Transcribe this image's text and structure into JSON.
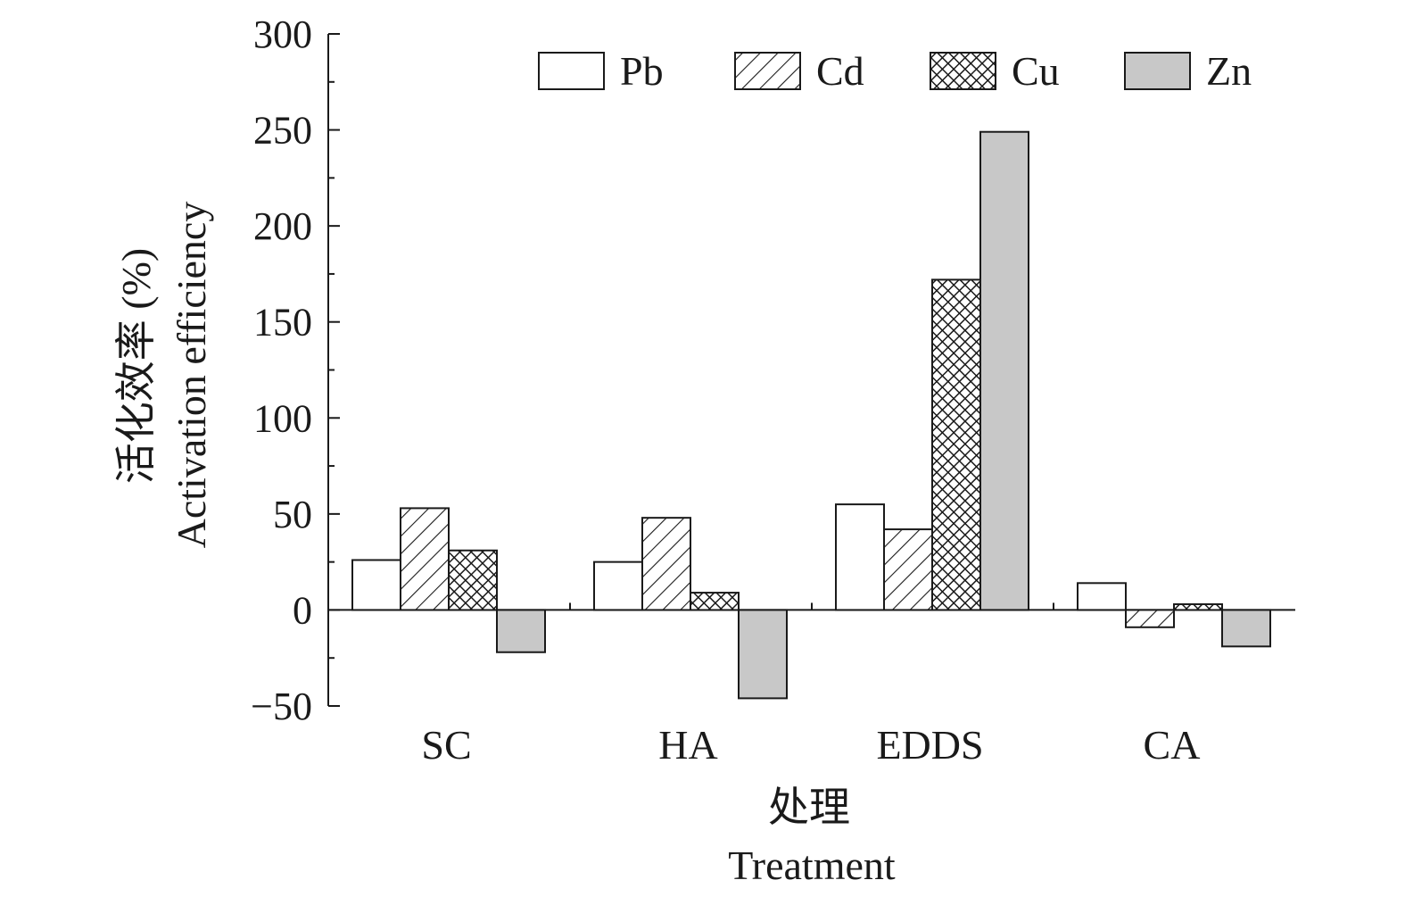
{
  "chart_data": {
    "type": "bar",
    "categories": [
      "SC",
      "HA",
      "EDDS",
      "CA"
    ],
    "series": [
      {
        "name": "Pb",
        "values": [
          26,
          25,
          55,
          14
        ],
        "pattern": "plain",
        "fill": "#ffffff"
      },
      {
        "name": "Cd",
        "values": [
          53,
          48,
          42,
          -9
        ],
        "pattern": "hatch",
        "fill": "#ffffff"
      },
      {
        "name": "Cu",
        "values": [
          31,
          9,
          172,
          3
        ],
        "pattern": "crosshatch",
        "fill": "#ffffff"
      },
      {
        "name": "Zn",
        "values": [
          -22,
          -46,
          249,
          -19
        ],
        "pattern": "solid",
        "fill": "#c8c8c8"
      }
    ],
    "xlabel_cn": "处理",
    "xlabel_en": "Treatment",
    "ylabel_cn": "活化效率 (%)",
    "ylabel_en": "Activation efficiency",
    "ylim": [
      -50,
      300
    ],
    "yticks": [
      "−50",
      "0",
      "50",
      "100",
      "150",
      "200",
      "250",
      "300"
    ],
    "ytick_values": [
      -50,
      0,
      50,
      100,
      150,
      200,
      250,
      300
    ],
    "grid": false,
    "legend_position": "top-right",
    "colors": {
      "stroke": "#1a1a1a",
      "zn_fill": "#c8c8c8"
    }
  }
}
